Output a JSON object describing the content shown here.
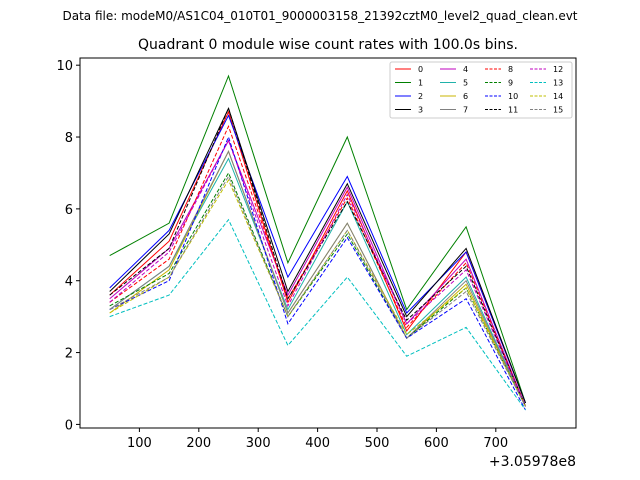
{
  "chart_data": {
    "type": "line",
    "suptitle": "Data file: modeM0/AS1C04_010T01_9000003158_21392cztM0_level2_quad_clean.evt",
    "title": "Quadrant 0 module wise count rates with 100.0s bins.",
    "xlabel": "",
    "ylabel": "",
    "x_offset_label": "+3.05978e8",
    "xlim": [
      0,
      835
    ],
    "ylim": [
      -0.1,
      10.2
    ],
    "x_ticks": [
      100,
      200,
      300,
      400,
      500,
      600,
      700
    ],
    "y_ticks": [
      0,
      2,
      4,
      6,
      8,
      10
    ],
    "x": [
      50,
      150,
      250,
      350,
      450,
      550,
      650,
      750
    ],
    "series": [
      {
        "name": "0",
        "color": "#ff0000",
        "dash": "solid",
        "values": [
          3.6,
          5.1,
          8.7,
          3.4,
          6.5,
          2.6,
          4.8,
          0.6
        ]
      },
      {
        "name": "1",
        "color": "#008000",
        "dash": "solid",
        "values": [
          4.7,
          5.6,
          9.7,
          4.5,
          8.0,
          3.2,
          5.5,
          0.6
        ]
      },
      {
        "name": "2",
        "color": "#0000ff",
        "dash": "solid",
        "values": [
          3.8,
          5.4,
          8.6,
          4.1,
          6.9,
          3.1,
          4.8,
          0.6
        ]
      },
      {
        "name": "3",
        "color": "#000000",
        "dash": "solid",
        "values": [
          3.7,
          5.3,
          8.8,
          3.7,
          6.7,
          3.0,
          4.9,
          0.6
        ]
      },
      {
        "name": "4",
        "color": "#bf00bf",
        "dash": "solid",
        "values": [
          3.5,
          4.9,
          7.9,
          3.6,
          6.6,
          2.8,
          4.6,
          0.5
        ]
      },
      {
        "name": "5",
        "color": "#20b2aa",
        "dash": "solid",
        "values": [
          3.2,
          4.4,
          7.4,
          3.2,
          6.2,
          2.5,
          4.1,
          0.5
        ]
      },
      {
        "name": "6",
        "color": "#c8b400",
        "dash": "solid",
        "values": [
          3.1,
          4.3,
          7.6,
          3.1,
          5.6,
          2.4,
          3.9,
          0.5
        ]
      },
      {
        "name": "7",
        "color": "#808080",
        "dash": "solid",
        "values": [
          3.2,
          4.4,
          7.6,
          3.1,
          5.6,
          2.4,
          4.0,
          0.5
        ]
      },
      {
        "name": "8",
        "color": "#ff0000",
        "dash": "dashed",
        "values": [
          3.4,
          4.6,
          8.3,
          3.5,
          6.3,
          2.7,
          4.5,
          0.5
        ]
      },
      {
        "name": "9",
        "color": "#008000",
        "dash": "dashed",
        "values": [
          3.3,
          4.2,
          7.0,
          3.0,
          5.3,
          2.4,
          3.8,
          0.5
        ]
      },
      {
        "name": "10",
        "color": "#0000ff",
        "dash": "dashed",
        "values": [
          3.2,
          4.0,
          8.0,
          2.8,
          5.2,
          2.4,
          3.5,
          0.4
        ]
      },
      {
        "name": "11",
        "color": "#000000",
        "dash": "dashed",
        "values": [
          3.6,
          4.9,
          8.8,
          3.5,
          6.2,
          2.9,
          4.4,
          0.5
        ]
      },
      {
        "name": "12",
        "color": "#bf00bf",
        "dash": "dashed",
        "values": [
          3.4,
          4.8,
          7.9,
          3.3,
          6.4,
          2.8,
          4.3,
          0.5
        ]
      },
      {
        "name": "13",
        "color": "#00bfbf",
        "dash": "dashed",
        "values": [
          3.0,
          3.6,
          5.7,
          2.2,
          4.1,
          1.9,
          2.7,
          0.4
        ]
      },
      {
        "name": "14",
        "color": "#bfbf00",
        "dash": "dashed",
        "values": [
          3.1,
          4.1,
          6.8,
          3.0,
          5.4,
          2.5,
          3.8,
          0.5
        ]
      },
      {
        "name": "15",
        "color": "#808080",
        "dash": "dashed",
        "values": [
          3.2,
          4.1,
          6.9,
          3.0,
          5.4,
          2.4,
          3.7,
          0.5
        ]
      }
    ],
    "legend_position": "top-right",
    "legend_columns": 4,
    "grid": false
  }
}
